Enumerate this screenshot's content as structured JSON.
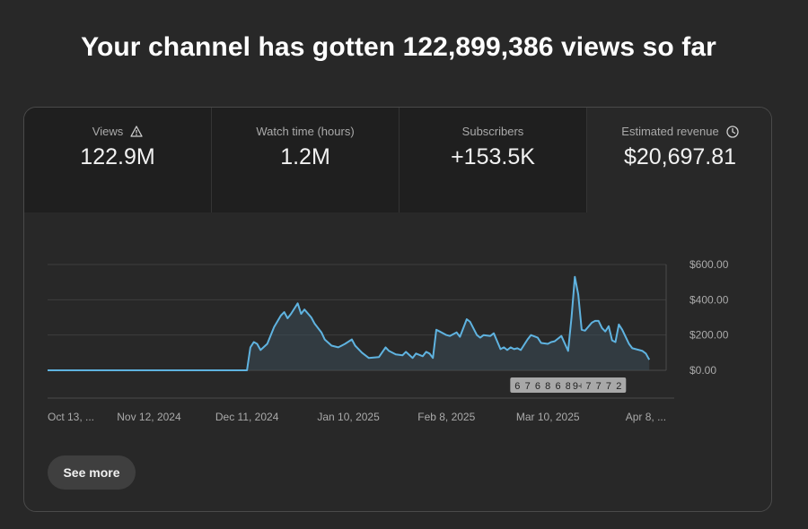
{
  "headline": "Your channel has gotten 122,899,386 views so far",
  "metrics": [
    {
      "label": "Views",
      "value": "122.9M",
      "icon": "warning-icon"
    },
    {
      "label": "Watch time (hours)",
      "value": "1.2M"
    },
    {
      "label": "Subscribers",
      "value": "+153.5K"
    },
    {
      "label": "Estimated revenue",
      "value": "$20,697.81",
      "icon": "clock-icon",
      "selected": true
    }
  ],
  "see_more_label": "See more",
  "colors": {
    "line": "#5fb3e0",
    "grid": "#3e3e3e",
    "background": "#282828",
    "metric_bg": "#1f1f1f"
  },
  "chart_data": {
    "type": "area",
    "ylim": [
      0,
      600
    ],
    "y_ticks": [
      0,
      200,
      400,
      600
    ],
    "y_tick_labels": [
      "$0.00",
      "$200.00",
      "$400.00",
      "$600.00"
    ],
    "x_range": [
      "2024-10-13",
      "2025-04-14"
    ],
    "x_ticks": [
      "2024-10-13",
      "2024-11-12",
      "2024-12-11",
      "2025-01-10",
      "2025-02-08",
      "2025-03-10",
      "2025-04-08"
    ],
    "x_tick_labels": [
      "Oct 13, ...",
      "Nov 12, 2024",
      "Dec 11, 2024",
      "Jan 10, 2025",
      "Feb 8, 2025",
      "Mar 10, 2025",
      "Apr 8, ..."
    ],
    "series": [
      {
        "points": [
          [
            "2024-10-13",
            0
          ],
          [
            "2024-12-10",
            0
          ],
          [
            "2024-12-11",
            0
          ],
          [
            "2024-12-12",
            130
          ],
          [
            "2024-12-13",
            160
          ],
          [
            "2024-12-14",
            150
          ],
          [
            "2024-12-15",
            115
          ],
          [
            "2024-12-17",
            150
          ],
          [
            "2024-12-19",
            245
          ],
          [
            "2024-12-21",
            310
          ],
          [
            "2024-12-22",
            330
          ],
          [
            "2024-12-23",
            295
          ],
          [
            "2024-12-24",
            320
          ],
          [
            "2024-12-26",
            380
          ],
          [
            "2024-12-27",
            320
          ],
          [
            "2024-12-28",
            345
          ],
          [
            "2024-12-30",
            300
          ],
          [
            "2024-12-31",
            265
          ],
          [
            "2025-01-02",
            215
          ],
          [
            "2025-01-03",
            175
          ],
          [
            "2025-01-05",
            140
          ],
          [
            "2025-01-07",
            130
          ],
          [
            "2025-01-09",
            150
          ],
          [
            "2025-01-11",
            175
          ],
          [
            "2025-01-12",
            140
          ],
          [
            "2025-01-14",
            100
          ],
          [
            "2025-01-16",
            70
          ],
          [
            "2025-01-19",
            75
          ],
          [
            "2025-01-21",
            130
          ],
          [
            "2025-01-22",
            110
          ],
          [
            "2025-01-24",
            90
          ],
          [
            "2025-01-26",
            85
          ],
          [
            "2025-01-27",
            105
          ],
          [
            "2025-01-29",
            70
          ],
          [
            "2025-01-30",
            95
          ],
          [
            "2025-02-01",
            80
          ],
          [
            "2025-02-02",
            105
          ],
          [
            "2025-02-03",
            95
          ],
          [
            "2025-02-04",
            70
          ],
          [
            "2025-02-05",
            230
          ],
          [
            "2025-02-06",
            220
          ],
          [
            "2025-02-08",
            200
          ],
          [
            "2025-02-09",
            195
          ],
          [
            "2025-02-11",
            215
          ],
          [
            "2025-02-12",
            190
          ],
          [
            "2025-02-14",
            290
          ],
          [
            "2025-02-15",
            275
          ],
          [
            "2025-02-17",
            200
          ],
          [
            "2025-02-18",
            185
          ],
          [
            "2025-02-19",
            200
          ],
          [
            "2025-02-21",
            195
          ],
          [
            "2025-02-22",
            210
          ],
          [
            "2025-02-24",
            120
          ],
          [
            "2025-02-25",
            130
          ],
          [
            "2025-02-26",
            115
          ],
          [
            "2025-02-27",
            130
          ],
          [
            "2025-02-28",
            120
          ],
          [
            "2025-03-01",
            125
          ],
          [
            "2025-03-02",
            115
          ],
          [
            "2025-03-04",
            175
          ],
          [
            "2025-03-05",
            200
          ],
          [
            "2025-03-07",
            185
          ],
          [
            "2025-03-08",
            155
          ],
          [
            "2025-03-10",
            150
          ],
          [
            "2025-03-11",
            160
          ],
          [
            "2025-03-12",
            165
          ],
          [
            "2025-03-14",
            195
          ],
          [
            "2025-03-16",
            110
          ],
          [
            "2025-03-17",
            300
          ],
          [
            "2025-03-18",
            530
          ],
          [
            "2025-03-19",
            430
          ],
          [
            "2025-03-20",
            230
          ],
          [
            "2025-03-21",
            225
          ],
          [
            "2025-03-23",
            270
          ],
          [
            "2025-03-24",
            280
          ],
          [
            "2025-03-25",
            280
          ],
          [
            "2025-03-26",
            240
          ],
          [
            "2025-03-27",
            220
          ],
          [
            "2025-03-28",
            250
          ],
          [
            "2025-03-29",
            170
          ],
          [
            "2025-03-30",
            160
          ],
          [
            "2025-03-31",
            260
          ],
          [
            "2025-04-01",
            230
          ],
          [
            "2025-04-02",
            190
          ],
          [
            "2025-04-03",
            150
          ],
          [
            "2025-04-04",
            125
          ],
          [
            "2025-04-06",
            115
          ],
          [
            "2025-04-07",
            110
          ],
          [
            "2025-04-08",
            95
          ],
          [
            "2025-04-09",
            60
          ]
        ]
      }
    ],
    "markers": [
      {
        "date": "2025-03-01",
        "label": "6"
      },
      {
        "date": "2025-03-04",
        "label": "7"
      },
      {
        "date": "2025-03-07",
        "label": "6"
      },
      {
        "date": "2025-03-10",
        "label": "8"
      },
      {
        "date": "2025-03-13",
        "label": "6"
      },
      {
        "date": "2025-03-16",
        "label": "8"
      },
      {
        "date": "2025-03-19",
        "label": "9+"
      },
      {
        "date": "2025-03-22",
        "label": "7"
      },
      {
        "date": "2025-03-25",
        "label": "7"
      },
      {
        "date": "2025-03-28",
        "label": "7"
      },
      {
        "date": "2025-03-31",
        "label": "2"
      }
    ]
  }
}
